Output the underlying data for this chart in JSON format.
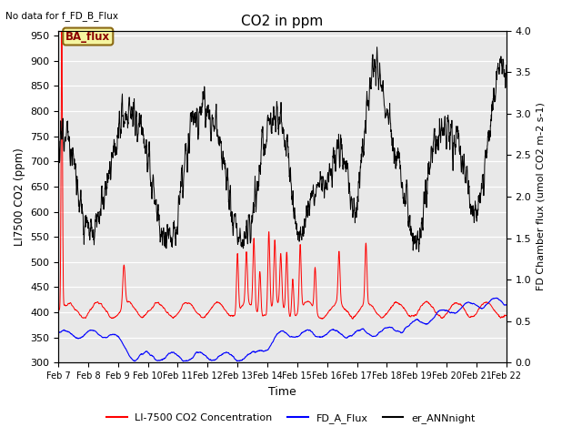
{
  "title": "CO2 in ppm",
  "top_left_text": "No data for f_FD_B_Flux",
  "annotation_text": "BA_flux",
  "ylabel_left": "LI7500 CO2 (ppm)",
  "ylabel_right": "FD Chamber flux (umol CO2 m-2 s-1)",
  "xlabel": "Time",
  "ylim_left": [
    300,
    960
  ],
  "ylim_right": [
    0.0,
    4.0
  ],
  "yticks_left": [
    300,
    350,
    400,
    450,
    500,
    550,
    600,
    650,
    700,
    750,
    800,
    850,
    900,
    950
  ],
  "yticks_right": [
    0.0,
    0.5,
    1.0,
    1.5,
    2.0,
    2.5,
    3.0,
    3.5,
    4.0
  ],
  "xtick_labels": [
    "Feb 7",
    "Feb 8",
    "Feb 9",
    "Feb 10",
    "Feb 11",
    "Feb 12",
    "Feb 13",
    "Feb 14",
    "Feb 15",
    "Feb 16",
    "Feb 17",
    "Feb 18",
    "Feb 19",
    "Feb 20",
    "Feb 21",
    "Feb 22"
  ],
  "legend_labels": [
    "LI-7500 CO2 Concentration",
    "FD_A_Flux",
    "er_ANNnight"
  ],
  "line_colors": [
    "red",
    "blue",
    "black"
  ],
  "plot_bg_color": "#e8e8e8",
  "n_points": 2000,
  "days": 15
}
